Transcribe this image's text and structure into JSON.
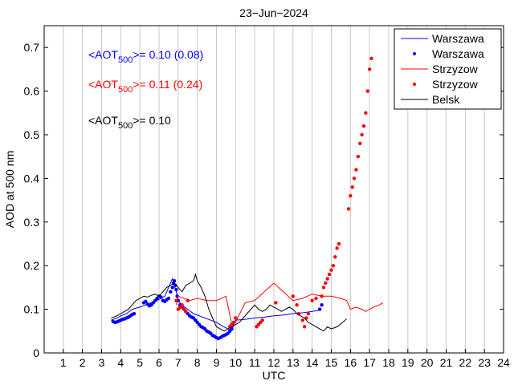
{
  "chart_data": {
    "type": "line",
    "title": "23−Jun−2024",
    "xlabel": "UTC",
    "ylabel": "AOD at 500 nm",
    "xlim": [
      0,
      24
    ],
    "ylim": [
      0,
      0.75
    ],
    "xticks": [
      "1",
      "2",
      "3",
      "4",
      "5",
      "6",
      "7",
      "8",
      "9",
      "10",
      "11",
      "12",
      "13",
      "14",
      "15",
      "16",
      "17",
      "18",
      "19",
      "20",
      "21",
      "22",
      "23",
      "24"
    ],
    "yticks": [
      "0",
      "0.1",
      "0.2",
      "0.3",
      "0.4",
      "0.5",
      "0.6",
      "0.7"
    ],
    "grid": "x-only",
    "legend_position": "top-right",
    "legend": [
      "Warszawa",
      "Warszawa",
      "Strzyzow",
      "Strzyzow",
      "Belsk"
    ],
    "annotations": [
      {
        "prefix": "<AOT",
        "sub": "500",
        "suffix": ">= 0.10 (0.08)",
        "color": "#0000ff"
      },
      {
        "prefix": "<AOT",
        "sub": "500",
        "suffix": ">= 0.11 (0.24)",
        "color": "#ff0000"
      },
      {
        "prefix": "<AOT",
        "sub": "500",
        "suffix": ">= 0.10",
        "color": "#000000"
      }
    ],
    "series": [
      {
        "name": "Warszawa",
        "kind": "line",
        "color": "#0000ff",
        "x": [
          3.5,
          3.8,
          4.0,
          4.3,
          4.6,
          5.0,
          5.3,
          5.6,
          5.9,
          6.1,
          6.3,
          6.5,
          6.7,
          6.8,
          6.9,
          7.0,
          7.2,
          7.5,
          7.8,
          8.1,
          8.4,
          8.7,
          9.0,
          9.3,
          9.6,
          9.8,
          10.0,
          10.5,
          11.0,
          11.5,
          12.0,
          12.5,
          13.0,
          13.5,
          14.0,
          14.4
        ],
        "y": [
          0.075,
          0.08,
          0.085,
          0.09,
          0.1,
          0.105,
          0.11,
          0.115,
          0.12,
          0.125,
          0.13,
          0.15,
          0.17,
          0.155,
          0.14,
          0.12,
          0.11,
          0.1,
          0.09,
          0.085,
          0.08,
          0.075,
          0.07,
          0.062,
          0.055,
          0.052,
          0.075,
          0.077,
          0.08,
          0.082,
          0.085,
          0.087,
          0.09,
          0.092,
          0.095,
          0.098
        ]
      },
      {
        "name": "Warszawa",
        "kind": "points",
        "color": "#0000ff",
        "x": [
          3.6,
          3.7,
          3.8,
          3.9,
          4.0,
          4.1,
          4.2,
          4.3,
          4.4,
          4.5,
          4.6,
          4.7,
          5.2,
          5.3,
          5.4,
          5.5,
          5.6,
          5.7,
          5.8,
          5.9,
          6.0,
          6.1,
          6.2,
          6.3,
          6.4,
          6.5,
          6.6,
          6.7,
          6.75,
          6.8,
          6.85,
          6.9,
          6.95,
          7.0,
          7.1,
          7.2,
          7.3,
          7.4,
          7.5,
          7.6,
          7.7,
          7.8,
          7.9,
          8.0,
          8.1,
          8.2,
          8.3,
          8.4,
          8.5,
          8.6,
          8.7,
          8.8,
          8.9,
          9.0,
          9.1,
          9.2,
          9.3,
          9.4,
          9.5,
          9.6,
          9.7,
          9.8,
          14.4,
          14.5
        ],
        "y": [
          0.072,
          0.07,
          0.071,
          0.073,
          0.075,
          0.077,
          0.078,
          0.08,
          0.082,
          0.085,
          0.088,
          0.09,
          0.115,
          0.118,
          0.112,
          0.108,
          0.11,
          0.115,
          0.12,
          0.125,
          0.13,
          0.128,
          0.12,
          0.118,
          0.122,
          0.125,
          0.14,
          0.15,
          0.16,
          0.165,
          0.155,
          0.145,
          0.13,
          0.12,
          0.11,
          0.105,
          0.1,
          0.095,
          0.09,
          0.085,
          0.082,
          0.08,
          0.075,
          0.07,
          0.065,
          0.06,
          0.058,
          0.055,
          0.05,
          0.048,
          0.045,
          0.04,
          0.038,
          0.035,
          0.033,
          0.035,
          0.038,
          0.04,
          0.042,
          0.045,
          0.05,
          0.055,
          0.1,
          0.11
        ]
      },
      {
        "name": "Strzyzow",
        "kind": "line",
        "color": "#ff0000",
        "x": [
          6.9,
          7.0,
          7.3,
          7.6,
          8.0,
          8.5,
          9.0,
          9.5,
          9.8,
          10.0,
          10.5,
          11.0,
          11.5,
          12.0,
          12.5,
          13.0,
          13.5,
          14.0,
          14.5,
          15.0,
          15.5,
          15.8,
          16.0,
          16.3,
          16.6,
          16.8,
          17.0,
          17.2,
          17.5,
          17.7
        ],
        "y": [
          0.11,
          0.13,
          0.125,
          0.12,
          0.125,
          0.12,
          0.12,
          0.13,
          0.065,
          0.07,
          0.115,
          0.12,
          0.14,
          0.16,
          0.14,
          0.12,
          0.125,
          0.135,
          0.13,
          0.13,
          0.125,
          0.12,
          0.1,
          0.105,
          0.1,
          0.095,
          0.1,
          0.105,
          0.11,
          0.115
        ]
      },
      {
        "name": "Strzyzow",
        "kind": "points",
        "color": "#ff0000",
        "x": [
          6.9,
          7.0,
          7.1,
          7.2,
          7.3,
          7.4,
          7.5,
          9.7,
          9.8,
          9.9,
          10.0,
          11.1,
          11.2,
          11.3,
          11.4,
          12.1,
          13.0,
          13.2,
          13.3,
          13.5,
          13.6,
          13.7,
          13.8,
          14.0,
          14.2,
          14.5,
          14.6,
          14.7,
          14.8,
          14.9,
          15.0,
          15.1,
          15.2,
          15.3,
          15.4,
          15.9,
          16.0,
          16.1,
          16.2,
          16.3,
          16.4,
          16.5,
          16.6,
          16.7,
          16.8,
          16.9,
          17.0,
          17.1
        ],
        "y": [
          0.12,
          0.1,
          0.105,
          0.11,
          0.1,
          0.095,
          0.12,
          0.06,
          0.065,
          0.07,
          0.08,
          0.06,
          0.065,
          0.07,
          0.075,
          0.115,
          0.13,
          0.11,
          0.09,
          0.075,
          0.06,
          0.08,
          0.09,
          0.12,
          0.125,
          0.13,
          0.15,
          0.16,
          0.17,
          0.18,
          0.19,
          0.2,
          0.22,
          0.24,
          0.25,
          0.33,
          0.36,
          0.38,
          0.4,
          0.42,
          0.45,
          0.48,
          0.5,
          0.52,
          0.55,
          0.6,
          0.65,
          0.675
        ]
      },
      {
        "name": "Belsk",
        "kind": "line",
        "color": "#000000",
        "x": [
          3.5,
          3.8,
          4.0,
          4.2,
          4.4,
          4.6,
          4.8,
          5.0,
          5.2,
          5.4,
          5.6,
          5.8,
          6.0,
          6.2,
          6.4,
          6.6,
          6.8,
          7.0,
          7.2,
          7.4,
          7.6,
          7.8,
          7.9,
          8.0,
          8.2,
          8.4,
          8.6,
          8.8,
          9.0,
          9.2,
          9.4,
          9.6,
          9.8,
          10.0,
          10.2,
          10.4,
          10.6,
          10.8,
          11.0,
          11.2,
          11.4,
          11.6,
          11.8,
          12.0,
          12.2,
          12.4,
          12.6,
          12.8,
          13.0,
          13.2,
          13.4,
          13.6,
          13.8,
          14.0,
          14.2,
          14.4,
          14.6,
          14.8,
          15.0,
          15.3,
          15.6,
          15.8
        ],
        "y": [
          0.08,
          0.085,
          0.09,
          0.095,
          0.1,
          0.11,
          0.12,
          0.125,
          0.13,
          0.128,
          0.132,
          0.135,
          0.13,
          0.14,
          0.15,
          0.155,
          0.16,
          0.15,
          0.14,
          0.155,
          0.16,
          0.165,
          0.18,
          0.165,
          0.15,
          0.13,
          0.1,
          0.08,
          0.06,
          0.055,
          0.05,
          0.055,
          0.06,
          0.065,
          0.07,
          0.08,
          0.09,
          0.1,
          0.11,
          0.1,
          0.095,
          0.1,
          0.11,
          0.105,
          0.1,
          0.095,
          0.1,
          0.105,
          0.1,
          0.09,
          0.085,
          0.08,
          0.07,
          0.065,
          0.06,
          0.055,
          0.05,
          0.06,
          0.055,
          0.06,
          0.07,
          0.078
        ]
      }
    ]
  }
}
